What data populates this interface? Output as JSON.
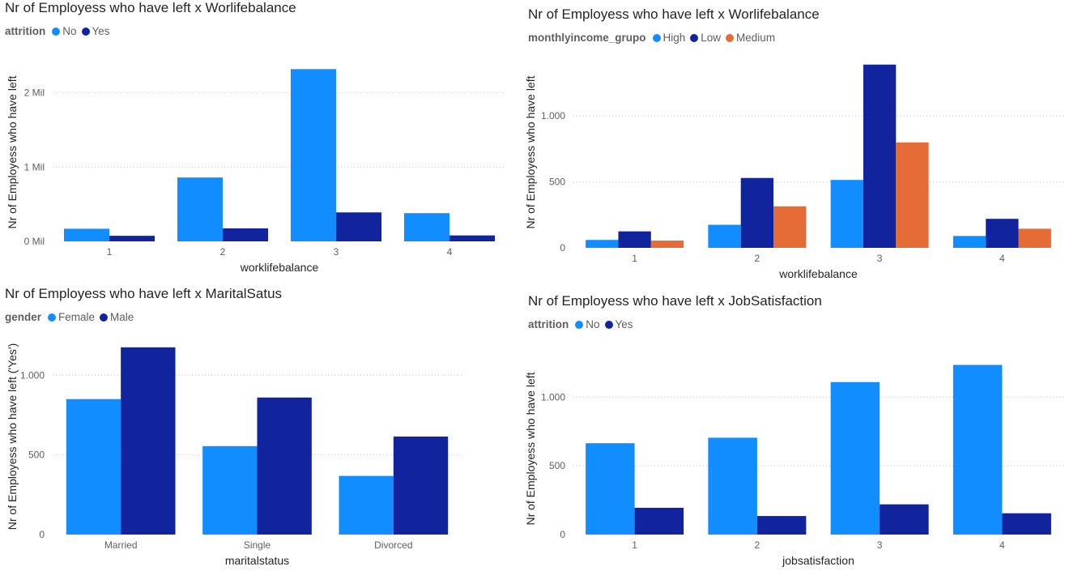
{
  "colors": {
    "light_blue": "#118DFF",
    "dark_blue": "#12239E",
    "orange": "#E66C37"
  },
  "chart_data": [
    {
      "type": "bar",
      "title": "Nr of Employess who have left x Worlifebalance",
      "legend_title": "attrition",
      "legend_position": "top-left",
      "xlabel": "worklifebalance",
      "ylabel": "Nr of Employess who have left",
      "categories": [
        "1",
        "2",
        "3",
        "4"
      ],
      "series": [
        {
          "name": "No",
          "color": "#118DFF",
          "values": [
            170000,
            860000,
            2320000,
            380000
          ]
        },
        {
          "name": "Yes",
          "color": "#12239E",
          "values": [
            75000,
            175000,
            390000,
            80000
          ]
        }
      ],
      "ylim": [
        0,
        2400000
      ],
      "yticks": [
        0,
        1000000,
        2000000
      ],
      "ytick_labels": [
        "0 Mil",
        "1 Mil",
        "2 Mil"
      ],
      "grid": true
    },
    {
      "type": "bar",
      "title": "Nr of Employess who have left x Worlifebalance",
      "legend_title": "monthlyincome_grupo",
      "legend_position": "top-left",
      "xlabel": "worklifebalance",
      "ylabel": "Nr of Employess who have left",
      "categories": [
        "1",
        "2",
        "3",
        "4"
      ],
      "series": [
        {
          "name": "High",
          "color": "#118DFF",
          "values": [
            60,
            175,
            515,
            90
          ]
        },
        {
          "name": "Low",
          "color": "#12239E",
          "values": [
            125,
            530,
            1390,
            220
          ]
        },
        {
          "name": "Medium",
          "color": "#E66C37",
          "values": [
            55,
            315,
            800,
            145
          ]
        }
      ],
      "ylim": [
        0,
        1450
      ],
      "yticks": [
        0,
        500,
        1000
      ],
      "ytick_labels": [
        "0",
        "500",
        "1.000"
      ],
      "grid": true
    },
    {
      "type": "bar",
      "title": "Nr of Employess who have left x MaritalSatus",
      "legend_title": "gender",
      "legend_position": "top-left",
      "xlabel": "maritalstatus",
      "ylabel": "Nr of Employess who have left ('Yes')",
      "categories": [
        "Married",
        "Single",
        "Divorced"
      ],
      "series": [
        {
          "name": "Female",
          "color": "#118DFF",
          "values": [
            850,
            555,
            368
          ]
        },
        {
          "name": "Male",
          "color": "#12239E",
          "values": [
            1175,
            860,
            615
          ]
        }
      ],
      "ylim": [
        0,
        1230
      ],
      "yticks": [
        0,
        500,
        1000
      ],
      "ytick_labels": [
        "0",
        "500",
        "1.000"
      ],
      "grid": true
    },
    {
      "type": "bar",
      "title": "Nr of Employess who have left x JobSatisfaction",
      "legend_title": "attrition",
      "legend_position": "top-left",
      "xlabel": "jobsatisfaction",
      "ylabel": "Nr of Employess who have left",
      "categories": [
        "1",
        "2",
        "3",
        "4"
      ],
      "series": [
        {
          "name": "No",
          "color": "#118DFF",
          "values": [
            665,
            705,
            1110,
            1235
          ]
        },
        {
          "name": "Yes",
          "color": "#12239E",
          "values": [
            195,
            135,
            220,
            155
          ]
        }
      ],
      "ylim": [
        0,
        1250
      ],
      "yticks": [
        0,
        500,
        1000
      ],
      "ytick_labels": [
        "0",
        "500",
        "1.000"
      ],
      "grid": true
    }
  ]
}
